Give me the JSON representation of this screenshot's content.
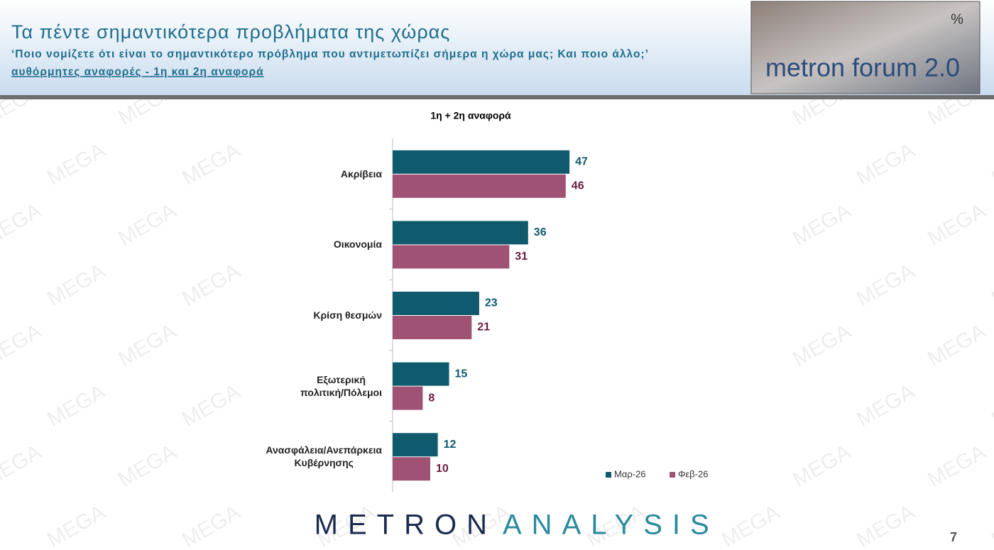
{
  "header": {
    "title": "Τα πέντε σημαντικότερα προβλήματα της χώρας",
    "subtitle": "‘Ποιο νομίζετε ότι είναι το σημαντικότερο πρόβλημα που αντιμετωπίζει σήμερα η χώρα μας; Και ποιο άλλο;’",
    "note": "αυθόρμητες αναφορές - 1η και 2η αναφορά",
    "logo": "metron forum 2.0",
    "logo_symbol": "%"
  },
  "chart_data": {
    "type": "hbar",
    "title": "1η + 2η αναφορά",
    "categories": [
      "Ακρίβεια",
      "Οικονομία",
      "Κρίση θεσμών",
      "Εξωτερική\nπολιτική/Πόλεμοι",
      "Ανασφάλεια/Ανεπάρκεια\nΚυβέρνησης"
    ],
    "series": [
      {
        "name": "Μαρ-26",
        "color": "#0f5a6c",
        "label_color": "#0f5a6c",
        "values": [
          47,
          36,
          23,
          15,
          12
        ]
      },
      {
        "name": "Φεβ-26",
        "color": "#a05275",
        "label_color": "#6a1c40",
        "values": [
          46,
          31,
          21,
          8,
          10
        ]
      }
    ],
    "xlim": [
      0,
      100
    ],
    "legend": "bottom-right"
  },
  "footer": {
    "brand_1": "METRON",
    "brand_2": "ANALYSIS",
    "page": "7"
  },
  "watermark": "MEGA"
}
